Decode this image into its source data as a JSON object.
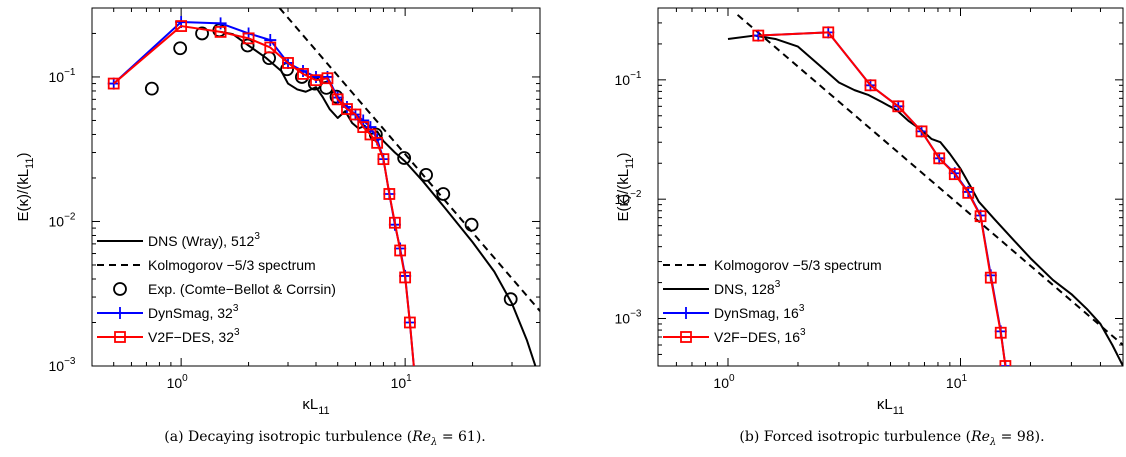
{
  "chart_data": [
    {
      "type": "line",
      "axes": "log-log",
      "xlim": [
        0.4,
        40
      ],
      "ylim": [
        0.001,
        0.3
      ],
      "xlabel": "κL",
      "xlabel_sub": "11",
      "ylabel": "E(κ)/(kL",
      "ylabel_sub": "11",
      "ylabel_close": ")",
      "xticks": [
        {
          "base": "10",
          "exp": "0",
          "value": 1
        },
        {
          "base": "10",
          "exp": "1",
          "value": 10
        }
      ],
      "yticks": [
        {
          "base": "10",
          "exp": "−3",
          "value": 0.001
        },
        {
          "base": "10",
          "exp": "−2",
          "value": 0.01
        },
        {
          "base": "10",
          "exp": "−1",
          "value": 0.1
        }
      ],
      "legend_position": "bottom-left",
      "caption_prefix": "(a) Decaying isotropic turbulence (",
      "caption_math": "Re",
      "caption_sub": "λ",
      "caption_suffix": " = 61).",
      "series": [
        {
          "name": "DNS (Wray), 512",
          "name_sup": "3",
          "style": "solid",
          "color": "#000000",
          "marker": "none",
          "x": [
            1.5,
            1.7,
            2.0,
            2.4,
            2.8,
            3.0,
            3.3,
            3.6,
            4.0,
            4.3,
            4.6,
            5.0,
            5.4,
            5.8,
            6.2,
            6.6,
            7.0,
            7.5,
            8,
            9,
            10,
            12,
            15,
            20,
            25,
            30,
            35,
            40
          ],
          "y": [
            0.205,
            0.198,
            0.165,
            0.135,
            0.11,
            0.09,
            0.082,
            0.079,
            0.085,
            0.072,
            0.06,
            0.052,
            0.058,
            0.048,
            0.044,
            0.046,
            0.04,
            0.042,
            0.036,
            0.03,
            0.026,
            0.019,
            0.0125,
            0.0072,
            0.0045,
            0.0027,
            0.0015,
            0.0008
          ]
        },
        {
          "name": "Kolmogorov −5/3 spectrum",
          "style": "dashed",
          "color": "#000000",
          "marker": "none",
          "x": [
            2.75,
            40
          ],
          "y": [
            0.3,
            0.0024
          ]
        },
        {
          "name": "Exp. (Comte−Bellot & Corrsin)",
          "style": "none",
          "color": "#000000",
          "marker": "circle",
          "x": [
            0.74,
            0.99,
            1.24,
            1.48,
            1.98,
            2.47,
            2.97,
            3.46,
            3.95,
            4.45,
            4.94,
            7.4,
            9.9,
            12.4,
            14.8,
            19.8,
            29.6
          ],
          "y": [
            0.083,
            0.158,
            0.2,
            0.21,
            0.165,
            0.135,
            0.113,
            0.1,
            0.09,
            0.084,
            0.073,
            0.04,
            0.0275,
            0.021,
            0.0155,
            0.0095,
            0.0029
          ]
        },
        {
          "name": "DynSmag, 32",
          "name_sup": "3",
          "style": "solid",
          "color": "#0000ff",
          "marker": "plus",
          "x": [
            0.5,
            1.0,
            1.5,
            2.0,
            2.5,
            3.0,
            3.5,
            4.0,
            4.5,
            5.0,
            5.5,
            6.0,
            6.5,
            7.0,
            7.5,
            8.0,
            8.5,
            9.0,
            9.5,
            10.0,
            10.5,
            11
          ],
          "y": [
            0.09,
            0.24,
            0.235,
            0.2,
            0.18,
            0.125,
            0.11,
            0.1,
            0.1,
            0.072,
            0.062,
            0.055,
            0.05,
            0.045,
            0.037,
            0.027,
            0.0155,
            0.0095,
            0.0065,
            0.0042,
            0.002,
            0.0009
          ]
        },
        {
          "name": "V2F−DES, 32",
          "name_sup": "3",
          "style": "solid",
          "color": "#ff0000",
          "marker": "square",
          "x": [
            0.5,
            1.0,
            1.5,
            2.0,
            2.5,
            3.0,
            3.5,
            4.0,
            4.5,
            5.0,
            5.5,
            6.0,
            6.5,
            7.0,
            7.5,
            8.0,
            8.5,
            9.0,
            9.5,
            10.0,
            10.5,
            11
          ],
          "y": [
            0.09,
            0.225,
            0.205,
            0.185,
            0.16,
            0.125,
            0.105,
            0.095,
            0.098,
            0.07,
            0.06,
            0.055,
            0.045,
            0.04,
            0.035,
            0.027,
            0.0155,
            0.0098,
            0.0063,
            0.0041,
            0.002,
            0.0009
          ]
        }
      ]
    },
    {
      "type": "line",
      "axes": "log-log",
      "xlim": [
        0.5,
        50
      ],
      "ylim": [
        0.0004,
        0.4
      ],
      "xlabel": "κL",
      "xlabel_sub": "11",
      "ylabel": "E(κ)/(kL",
      "ylabel_sub": "11",
      "ylabel_close": ")",
      "xticks": [
        {
          "base": "10",
          "exp": "0",
          "value": 1
        },
        {
          "base": "10",
          "exp": "1",
          "value": 10
        }
      ],
      "yticks": [
        {
          "base": "10",
          "exp": "−3",
          "value": 0.001
        },
        {
          "base": "10",
          "exp": "−2",
          "value": 0.01
        },
        {
          "base": "10",
          "exp": "−1",
          "value": 0.1
        }
      ],
      "legend_position": "bottom-left",
      "caption_prefix": "(b) Forced isotropic turbulence (",
      "caption_math": "Re",
      "caption_sub": "λ",
      "caption_suffix": " = 98).",
      "series": [
        {
          "name": "Kolmogorov −5/3 spectrum",
          "style": "dashed",
          "color": "#000000",
          "marker": "none",
          "x": [
            1.1,
            50
          ],
          "y": [
            0.35,
            0.0006
          ]
        },
        {
          "name": "DNS, 128",
          "name_sup": "3",
          "style": "solid",
          "color": "#000000",
          "marker": "none",
          "x": [
            1.0,
            1.3,
            1.6,
            2.0,
            2.5,
            3.0,
            3.5,
            4.0,
            4.6,
            5.3,
            6.0,
            6.8,
            7.5,
            8.2,
            9.0,
            10,
            11,
            12,
            14,
            17,
            20,
            25,
            30,
            35,
            40,
            45,
            50
          ],
          "y": [
            0.22,
            0.235,
            0.22,
            0.19,
            0.13,
            0.095,
            0.082,
            0.075,
            0.065,
            0.056,
            0.045,
            0.038,
            0.032,
            0.03,
            0.024,
            0.018,
            0.013,
            0.0095,
            0.0068,
            0.0045,
            0.0032,
            0.0021,
            0.0016,
            0.0012,
            0.0009,
            0.0006,
            0.0004
          ]
        },
        {
          "name": "DynSmag, 16",
          "name_sup": "3",
          "style": "solid",
          "color": "#0000ff",
          "marker": "plus",
          "x": [
            1.35,
            2.7,
            4.1,
            5.4,
            6.8,
            8.1,
            9.45,
            10.8,
            12.2,
            13.5,
            14.9,
            15.6
          ],
          "y": [
            0.235,
            0.25,
            0.09,
            0.06,
            0.037,
            0.022,
            0.0165,
            0.0115,
            0.0073,
            0.0023,
            0.00078,
            0.0004
          ]
        },
        {
          "name": "V2F−DES, 16",
          "name_sup": "3",
          "style": "solid",
          "color": "#ff0000",
          "marker": "square",
          "x": [
            1.35,
            2.7,
            4.1,
            5.4,
            6.8,
            8.1,
            9.45,
            10.8,
            12.2,
            13.5,
            14.9,
            15.6
          ],
          "y": [
            0.235,
            0.25,
            0.09,
            0.06,
            0.037,
            0.022,
            0.0162,
            0.0113,
            0.0072,
            0.0022,
            0.00076,
            0.0004
          ]
        }
      ]
    }
  ]
}
